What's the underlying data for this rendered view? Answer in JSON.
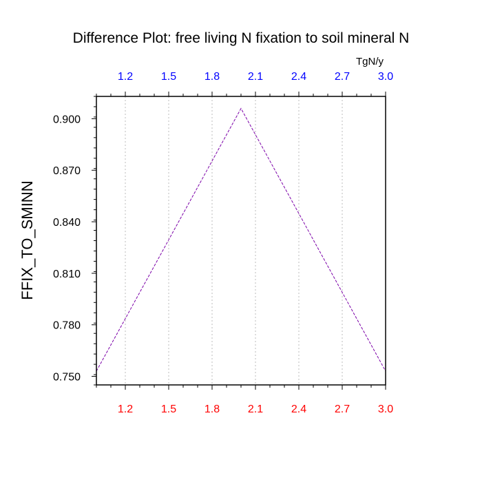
{
  "chart_data": {
    "type": "line",
    "title": "Difference Plot: free living N fixation to soil mineral N",
    "ylabel": "FFIX_TO_SMINN",
    "top_axis_units": "TgN/y",
    "xlim": [
      1.0,
      3.0
    ],
    "ylim": [
      0.745,
      0.913
    ],
    "x_ticks": [
      "1.2",
      "1.5",
      "1.8",
      "2.1",
      "2.4",
      "2.7",
      "3.0"
    ],
    "x_tick_values": [
      1.2,
      1.5,
      1.8,
      2.1,
      2.4,
      2.7,
      3.0
    ],
    "y_ticks": [
      "0.750",
      "0.780",
      "0.810",
      "0.840",
      "0.870",
      "0.900"
    ],
    "y_tick_values": [
      0.75,
      0.78,
      0.81,
      0.84,
      0.87,
      0.9
    ],
    "bottom_tick_color": "#ff0000",
    "top_tick_color": "#0000ff",
    "grid": "vertical-dotted",
    "series": [
      {
        "x": [
          1.0,
          2.0,
          3.0
        ],
        "values": [
          0.753,
          0.906,
          0.753
        ],
        "color": "#7b00a8",
        "dash": "dashed"
      }
    ]
  }
}
